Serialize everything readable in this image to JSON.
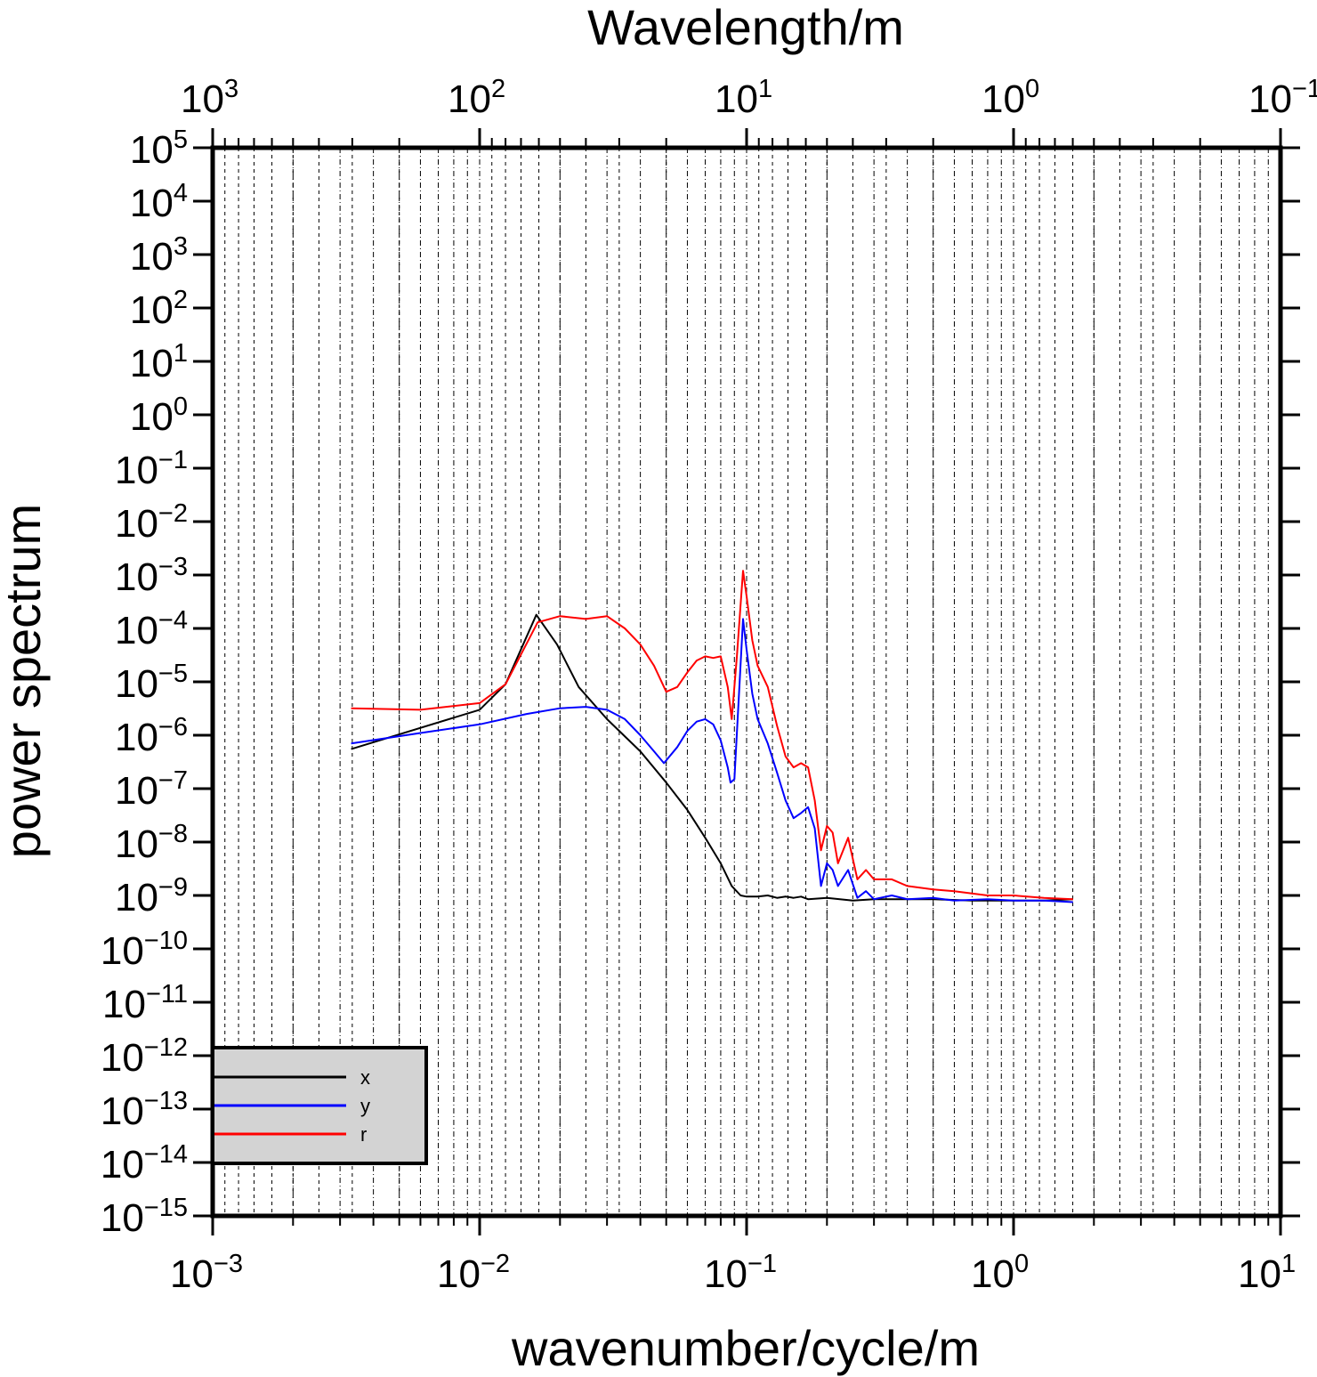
{
  "chart_data": {
    "type": "line",
    "title": "",
    "xlabel": "wavenumber/cycle/m",
    "ylabel": "power spectrum",
    "x2label": "Wavelength/m",
    "xscale": "log",
    "yscale": "log",
    "xlim": [
      0.001,
      10
    ],
    "ylim": [
      1e-15,
      100000
    ],
    "x2lim": [
      1000,
      0.1
    ],
    "grid": true,
    "legend": "bottom-left",
    "x_ticks": [
      {
        "base": "10",
        "exp": "−3",
        "value": 0.001
      },
      {
        "base": "10",
        "exp": "−2",
        "value": 0.01
      },
      {
        "base": "10",
        "exp": "−1",
        "value": 0.1
      },
      {
        "base": "10",
        "exp": "0",
        "value": 1
      },
      {
        "base": "10",
        "exp": "1",
        "value": 10
      }
    ],
    "x2_ticks": [
      {
        "base": "10",
        "exp": "3",
        "value": 1000
      },
      {
        "base": "10",
        "exp": "2",
        "value": 100
      },
      {
        "base": "10",
        "exp": "1",
        "value": 10
      },
      {
        "base": "10",
        "exp": "0",
        "value": 1
      },
      {
        "base": "10",
        "exp": "−1",
        "value": 0.1
      }
    ],
    "y_ticks": [
      {
        "base": "10",
        "exp": "5",
        "value": 100000.0
      },
      {
        "base": "10",
        "exp": "4",
        "value": 10000.0
      },
      {
        "base": "10",
        "exp": "3",
        "value": 1000.0
      },
      {
        "base": "10",
        "exp": "2",
        "value": 100.0
      },
      {
        "base": "10",
        "exp": "1",
        "value": 10.0
      },
      {
        "base": "10",
        "exp": "0",
        "value": 1
      },
      {
        "base": "10",
        "exp": "−1",
        "value": 0.1
      },
      {
        "base": "10",
        "exp": "−2",
        "value": 0.01
      },
      {
        "base": "10",
        "exp": "−3",
        "value": 0.001
      },
      {
        "base": "10",
        "exp": "−4",
        "value": 0.0001
      },
      {
        "base": "10",
        "exp": "−5",
        "value": 1e-05
      },
      {
        "base": "10",
        "exp": "−6",
        "value": 1e-06
      },
      {
        "base": "10",
        "exp": "−7",
        "value": 1e-07
      },
      {
        "base": "10",
        "exp": "−8",
        "value": 1e-08
      },
      {
        "base": "10",
        "exp": "−9",
        "value": 1e-09
      },
      {
        "base": "10",
        "exp": "−10",
        "value": 1e-10
      },
      {
        "base": "10",
        "exp": "−11",
        "value": 1e-11
      },
      {
        "base": "10",
        "exp": "−12",
        "value": 1e-12
      },
      {
        "base": "10",
        "exp": "−13",
        "value": 1e-13
      },
      {
        "base": "10",
        "exp": "−14",
        "value": 1e-14
      },
      {
        "base": "10",
        "exp": "−15",
        "value": 1e-15
      }
    ],
    "series": [
      {
        "name": "x",
        "color": "#000000",
        "points": [
          [
            0.0033,
            5.5e-07
          ],
          [
            0.01,
            3e-06
          ],
          [
            0.0125,
            9e-06
          ],
          [
            0.0163,
            0.00018
          ],
          [
            0.0195,
            5e-05
          ],
          [
            0.0235,
            8e-06
          ],
          [
            0.03,
            2e-06
          ],
          [
            0.04,
            5e-07
          ],
          [
            0.05,
            1.3e-07
          ],
          [
            0.06,
            4e-08
          ],
          [
            0.07,
            1.2e-08
          ],
          [
            0.08,
            4e-09
          ],
          [
            0.088,
            1.5e-09
          ],
          [
            0.095,
            1e-09
          ],
          [
            0.1,
            9.5e-10
          ],
          [
            0.11,
            9.5e-10
          ],
          [
            0.12,
            1e-09
          ],
          [
            0.13,
            9e-10
          ],
          [
            0.14,
            9.5e-10
          ],
          [
            0.15,
            9e-10
          ],
          [
            0.16,
            9.5e-10
          ],
          [
            0.17,
            8.5e-10
          ],
          [
            0.2,
            9e-10
          ],
          [
            0.25,
            8e-10
          ],
          [
            0.3,
            8.5e-10
          ],
          [
            0.4,
            8.5e-10
          ],
          [
            0.5,
            8.5e-10
          ],
          [
            0.7,
            8e-10
          ],
          [
            1.0,
            8e-10
          ],
          [
            1.3,
            8e-10
          ],
          [
            1.67,
            8.5e-10
          ]
        ]
      },
      {
        "name": "y",
        "color": "#0000ff",
        "points": [
          [
            0.0033,
            7e-07
          ],
          [
            0.006,
            1.1e-06
          ],
          [
            0.01,
            1.6e-06
          ],
          [
            0.015,
            2.5e-06
          ],
          [
            0.02,
            3.2e-06
          ],
          [
            0.025,
            3.4e-06
          ],
          [
            0.03,
            3e-06
          ],
          [
            0.035,
            2e-06
          ],
          [
            0.04,
            1e-06
          ],
          [
            0.045,
            5e-07
          ],
          [
            0.049,
            3e-07
          ],
          [
            0.055,
            6e-07
          ],
          [
            0.06,
            1.2e-06
          ],
          [
            0.065,
            1.8e-06
          ],
          [
            0.07,
            2e-06
          ],
          [
            0.075,
            1.6e-06
          ],
          [
            0.08,
            8e-07
          ],
          [
            0.085,
            2.5e-07
          ],
          [
            0.087,
            1.3e-07
          ],
          [
            0.09,
            1.5e-07
          ],
          [
            0.093,
            3e-06
          ],
          [
            0.097,
            0.00015
          ],
          [
            0.1,
            4e-05
          ],
          [
            0.105,
            6e-06
          ],
          [
            0.11,
            2e-06
          ],
          [
            0.12,
            7e-07
          ],
          [
            0.13,
            2e-07
          ],
          [
            0.14,
            6e-08
          ],
          [
            0.15,
            2.8e-08
          ],
          [
            0.16,
            3.5e-08
          ],
          [
            0.17,
            4.5e-08
          ],
          [
            0.18,
            1.8e-08
          ],
          [
            0.19,
            1.5e-09
          ],
          [
            0.2,
            4e-09
          ],
          [
            0.21,
            3e-09
          ],
          [
            0.22,
            1.5e-09
          ],
          [
            0.24,
            3e-09
          ],
          [
            0.26,
            9e-10
          ],
          [
            0.28,
            1.2e-09
          ],
          [
            0.3,
            8.5e-10
          ],
          [
            0.35,
            1e-09
          ],
          [
            0.4,
            8.5e-10
          ],
          [
            0.5,
            9e-10
          ],
          [
            0.6,
            8e-10
          ],
          [
            0.8,
            8.5e-10
          ],
          [
            1.0,
            8e-10
          ],
          [
            1.3,
            8e-10
          ],
          [
            1.67,
            7.5e-10
          ]
        ]
      },
      {
        "name": "r",
        "color": "#ff0000",
        "points": [
          [
            0.0033,
            3.2e-06
          ],
          [
            0.006,
            3e-06
          ],
          [
            0.01,
            4e-06
          ],
          [
            0.0125,
            9e-06
          ],
          [
            0.0165,
            0.00013
          ],
          [
            0.02,
            0.00017
          ],
          [
            0.025,
            0.00015
          ],
          [
            0.03,
            0.00017
          ],
          [
            0.035,
            0.0001
          ],
          [
            0.04,
            5e-05
          ],
          [
            0.045,
            2e-05
          ],
          [
            0.05,
            6.5e-06
          ],
          [
            0.055,
            8e-06
          ],
          [
            0.06,
            1.5e-05
          ],
          [
            0.065,
            2.5e-05
          ],
          [
            0.07,
            3e-05
          ],
          [
            0.075,
            2.8e-05
          ],
          [
            0.08,
            3e-05
          ],
          [
            0.085,
            8e-06
          ],
          [
            0.088,
            2e-06
          ],
          [
            0.092,
            3e-05
          ],
          [
            0.097,
            0.0012
          ],
          [
            0.1,
            0.0004
          ],
          [
            0.105,
            6e-05
          ],
          [
            0.11,
            2e-05
          ],
          [
            0.12,
            8e-06
          ],
          [
            0.13,
            1.5e-06
          ],
          [
            0.14,
            4e-07
          ],
          [
            0.15,
            2.5e-07
          ],
          [
            0.16,
            3e-07
          ],
          [
            0.17,
            2.5e-07
          ],
          [
            0.18,
            6e-08
          ],
          [
            0.19,
            7e-09
          ],
          [
            0.2,
            2e-08
          ],
          [
            0.21,
            1.5e-08
          ],
          [
            0.22,
            4e-09
          ],
          [
            0.24,
            1.2e-08
          ],
          [
            0.26,
            2e-09
          ],
          [
            0.28,
            3e-09
          ],
          [
            0.3,
            2e-09
          ],
          [
            0.35,
            2e-09
          ],
          [
            0.4,
            1.5e-09
          ],
          [
            0.5,
            1.3e-09
          ],
          [
            0.6,
            1.2e-09
          ],
          [
            0.8,
            1e-09
          ],
          [
            1.0,
            1e-09
          ],
          [
            1.3,
            9e-10
          ],
          [
            1.67,
            8.5e-10
          ]
        ]
      }
    ]
  }
}
